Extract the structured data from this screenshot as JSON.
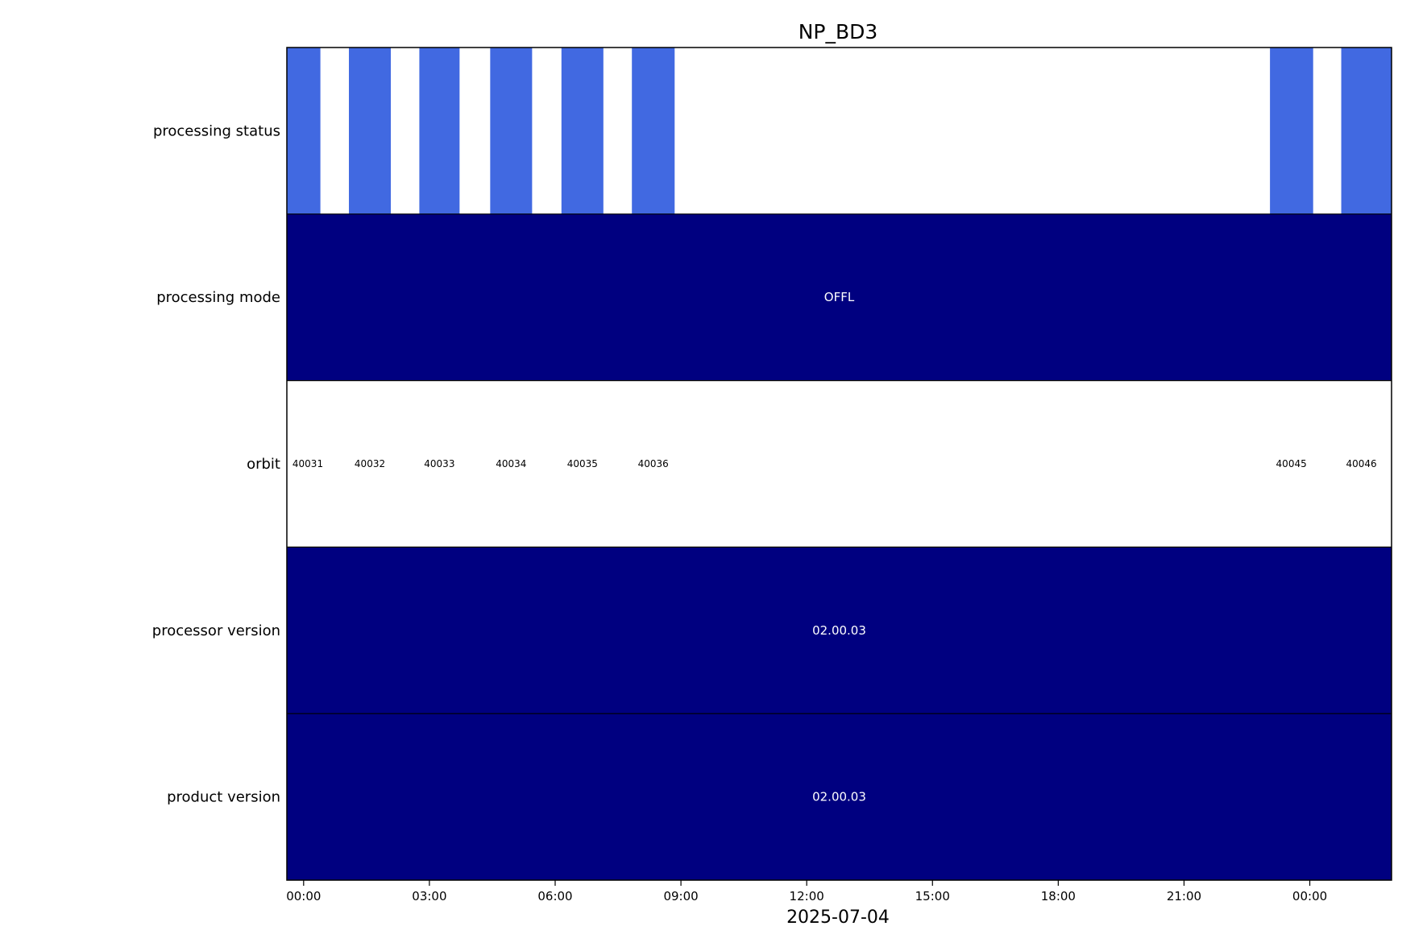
{
  "chart_data": {
    "type": "timeline",
    "title": "NP_BD3",
    "xlabel": "2025-07-04",
    "x_range_hours": [
      -0.4,
      25.95
    ],
    "x_ticks": [
      {
        "hour": 0,
        "label": "00:00"
      },
      {
        "hour": 3,
        "label": "03:00"
      },
      {
        "hour": 6,
        "label": "06:00"
      },
      {
        "hour": 9,
        "label": "09:00"
      },
      {
        "hour": 12,
        "label": "12:00"
      },
      {
        "hour": 15,
        "label": "15:00"
      },
      {
        "hour": 18,
        "label": "18:00"
      },
      {
        "hour": 21,
        "label": "21:00"
      },
      {
        "hour": 24,
        "label": "00:00"
      }
    ],
    "rows": [
      {
        "label": "processing status",
        "kind": "segments",
        "background": "#ffffff",
        "color": "#4169e1",
        "segments": [
          {
            "start": -0.4,
            "end": 0.4
          },
          {
            "start": 1.08,
            "end": 2.08
          },
          {
            "start": 2.76,
            "end": 3.72
          },
          {
            "start": 4.45,
            "end": 5.45
          },
          {
            "start": 6.15,
            "end": 7.15
          },
          {
            "start": 7.83,
            "end": 8.85
          },
          {
            "start": 23.05,
            "end": 24.08
          },
          {
            "start": 24.75,
            "end": 25.95
          }
        ]
      },
      {
        "label": "processing mode",
        "kind": "band",
        "color": "#000080",
        "text": "OFFL"
      },
      {
        "label": "orbit",
        "kind": "labels",
        "background": "#ffffff",
        "items": [
          {
            "hour": 0.1,
            "text": "40031"
          },
          {
            "hour": 1.58,
            "text": "40032"
          },
          {
            "hour": 3.24,
            "text": "40033"
          },
          {
            "hour": 4.95,
            "text": "40034"
          },
          {
            "hour": 6.65,
            "text": "40035"
          },
          {
            "hour": 8.34,
            "text": "40036"
          },
          {
            "hour": 23.56,
            "text": "40045"
          },
          {
            "hour": 25.23,
            "text": "40046"
          }
        ]
      },
      {
        "label": "processor version",
        "kind": "band",
        "color": "#000080",
        "text": "02.00.03"
      },
      {
        "label": "product version",
        "kind": "band",
        "color": "#000080",
        "text": "02.00.03"
      }
    ]
  }
}
